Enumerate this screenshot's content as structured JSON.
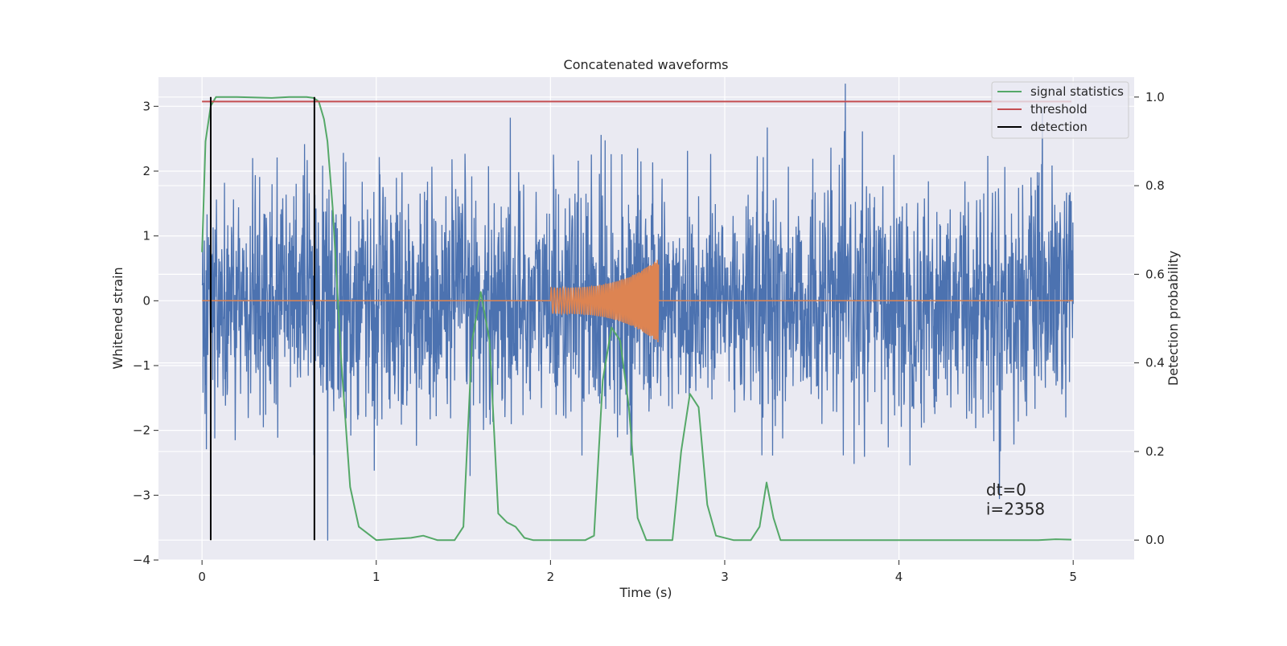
{
  "chart_data": {
    "type": "line",
    "title": "Concatenated waveforms",
    "xlabel": "Time (s)",
    "ylabel_left": "Whitened strain",
    "ylabel_right": "Detection probability",
    "xlim": [
      -0.25,
      5.35
    ],
    "ylim_left": [
      -4,
      3.45
    ],
    "ylim_right": [
      -0.045,
      1.045
    ],
    "xticks": [
      0,
      1,
      2,
      3,
      4,
      5
    ],
    "xtick_labels": [
      "0",
      "1",
      "2",
      "3",
      "4",
      "5"
    ],
    "yticks_left": [
      3,
      2,
      1,
      0,
      -1,
      -2,
      -3,
      -4
    ],
    "ytick_labels_left": [
      "3",
      "2",
      "1",
      "0",
      "−1",
      "−2",
      "−3",
      "−4"
    ],
    "yticks_right": [
      1.0,
      0.8,
      0.6,
      0.4,
      0.2,
      0.0
    ],
    "ytick_labels_right": [
      "1.0",
      "0.8",
      "0.6",
      "0.4",
      "0.2",
      "0.0"
    ],
    "grid": true,
    "legend_placement": "top-right",
    "series": [
      {
        "name": "signal statistics",
        "color": "#55a868",
        "axis": "right",
        "x": [
          0.0,
          0.02,
          0.05,
          0.08,
          0.1,
          0.2,
          0.4,
          0.5,
          0.6,
          0.64,
          0.67,
          0.7,
          0.72,
          0.75,
          0.8,
          0.85,
          0.9,
          1.0,
          1.2,
          1.27,
          1.35,
          1.45,
          1.5,
          1.55,
          1.6,
          1.65,
          1.7,
          1.75,
          1.8,
          1.85,
          1.9,
          2.0,
          2.1,
          2.2,
          2.25,
          2.3,
          2.35,
          2.4,
          2.45,
          2.5,
          2.55,
          2.6,
          2.7,
          2.75,
          2.8,
          2.85,
          2.9,
          2.95,
          3.05,
          3.15,
          3.2,
          3.24,
          3.28,
          3.32,
          3.4,
          3.6,
          4.0,
          4.5,
          4.8,
          4.9,
          4.99
        ],
        "y": [
          0.65,
          0.9,
          0.98,
          1.0,
          1.0,
          1.0,
          0.998,
          1.0,
          1.0,
          0.998,
          0.99,
          0.95,
          0.9,
          0.75,
          0.4,
          0.12,
          0.03,
          0.0,
          0.005,
          0.01,
          0.0,
          0.0,
          0.03,
          0.45,
          0.56,
          0.45,
          0.06,
          0.04,
          0.03,
          0.005,
          0.0,
          0.0,
          0.0,
          0.0,
          0.01,
          0.36,
          0.48,
          0.45,
          0.3,
          0.05,
          0.0,
          0.0,
          0.0,
          0.2,
          0.33,
          0.3,
          0.08,
          0.01,
          0.0,
          0.0,
          0.03,
          0.13,
          0.05,
          0.0,
          0.0,
          0.0,
          0.0,
          0.0,
          0.0,
          0.002,
          0.001
        ]
      },
      {
        "name": "threshold",
        "color": "#c44e52",
        "axis": "right",
        "x": [
          0.0,
          4.99
        ],
        "y": [
          0.99,
          0.99
        ]
      },
      {
        "name": "detection",
        "color": "#000000",
        "axis": "right",
        "x_positions": [
          0.05,
          0.645
        ],
        "y_range": [
          0.0,
          1.0
        ]
      }
    ],
    "annotations": [
      {
        "text": "dt=0",
        "x": 4.5,
        "y": -3.0
      },
      {
        "text": "i=2358",
        "x": 4.5,
        "y": -3.3
      }
    ]
  }
}
